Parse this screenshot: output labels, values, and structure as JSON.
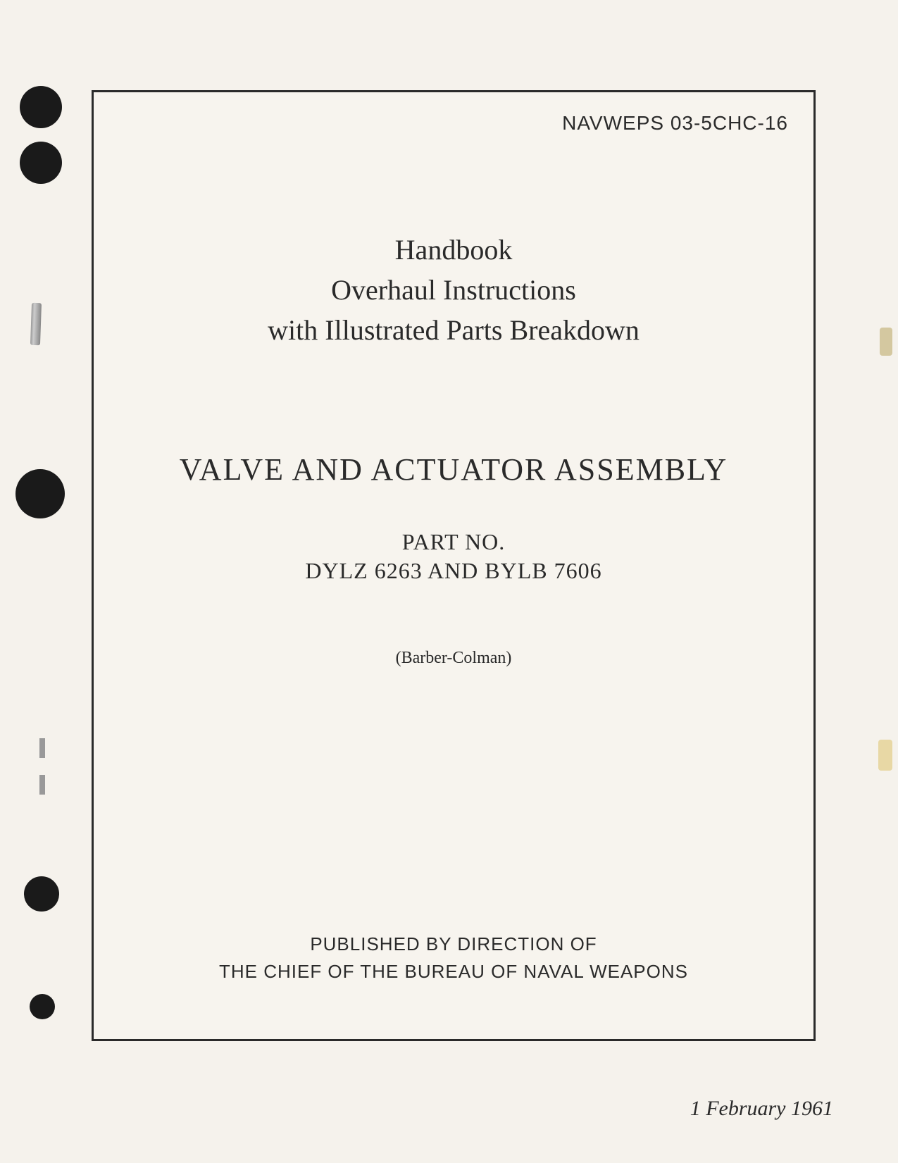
{
  "document_number": "NAVWEPS 03-5CHC-16",
  "header": {
    "line1": "Handbook",
    "line2": "Overhaul Instructions",
    "line3": "with Illustrated Parts Breakdown"
  },
  "main_title": "VALVE AND ACTUATOR ASSEMBLY",
  "part": {
    "label": "PART NO.",
    "numbers": "DYLZ 6263 AND BYLB 7606"
  },
  "manufacturer": "(Barber-Colman)",
  "publisher": {
    "line1": "PUBLISHED BY DIRECTION OF",
    "line2": "THE CHIEF OF THE BUREAU OF NAVAL WEAPONS"
  },
  "date": "1 February 1961",
  "style": {
    "background_color": "#f5f2ec",
    "text_color": "#2a2a2a",
    "border_color": "#2a2a2a",
    "border_width": 3,
    "serif_font": "Times New Roman",
    "sans_font": "Arial",
    "doc_number_fontsize": 28,
    "header_fontsize": 40,
    "title_fontsize": 44,
    "part_fontsize": 32,
    "manufacturer_fontsize": 24,
    "publisher_fontsize": 26,
    "date_fontsize": 30,
    "hole_color": "#1a1a1a"
  }
}
